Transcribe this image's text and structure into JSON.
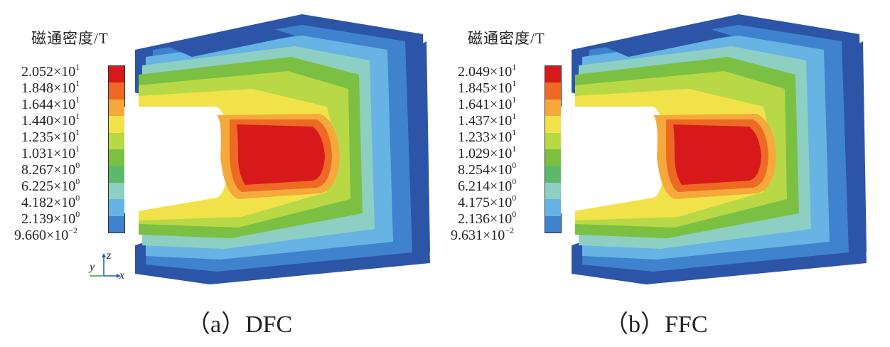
{
  "panels": [
    {
      "legend_title": "磁通密度/T",
      "ticks": [
        {
          "m": "2.052×10",
          "e": "1"
        },
        {
          "m": "1.848×10",
          "e": "1"
        },
        {
          "m": "1.644×10",
          "e": "1"
        },
        {
          "m": "1.440×10",
          "e": "1"
        },
        {
          "m": "1.235×10",
          "e": "1"
        },
        {
          "m": "1.031×10",
          "e": "1"
        },
        {
          "m": "8.267×10",
          "e": "0"
        },
        {
          "m": "6.225×10",
          "e": "0"
        },
        {
          "m": "4.182×10",
          "e": "0"
        },
        {
          "m": "2.139×10",
          "e": "0"
        },
        {
          "m": "9.660×10",
          "e": "−2"
        }
      ],
      "caption": "（a）DFC",
      "axes": {
        "y": "y",
        "z": "z",
        "x": "x"
      }
    },
    {
      "legend_title": "磁通密度/T",
      "ticks": [
        {
          "m": "2.049×10",
          "e": "1"
        },
        {
          "m": "1.845×10",
          "e": "1"
        },
        {
          "m": "1.641×10",
          "e": "1"
        },
        {
          "m": "1.437×10",
          "e": "1"
        },
        {
          "m": "1.233×10",
          "e": "1"
        },
        {
          "m": "1.029×10",
          "e": "1"
        },
        {
          "m": "8.254×10",
          "e": "0"
        },
        {
          "m": "6.214×10",
          "e": "0"
        },
        {
          "m": "4.175×10",
          "e": "0"
        },
        {
          "m": "2.136×10",
          "e": "0"
        },
        {
          "m": "9.631×10",
          "e": "−2"
        }
      ],
      "caption": "（b）FFC"
    }
  ],
  "colormap": [
    "#d7191c",
    "#ee6a24",
    "#f5a93a",
    "#f2e24a",
    "#b9d846",
    "#7cc043",
    "#5db96a",
    "#8ecfc4",
    "#67b3e3",
    "#3f82cd",
    "#2c55a8"
  ]
}
